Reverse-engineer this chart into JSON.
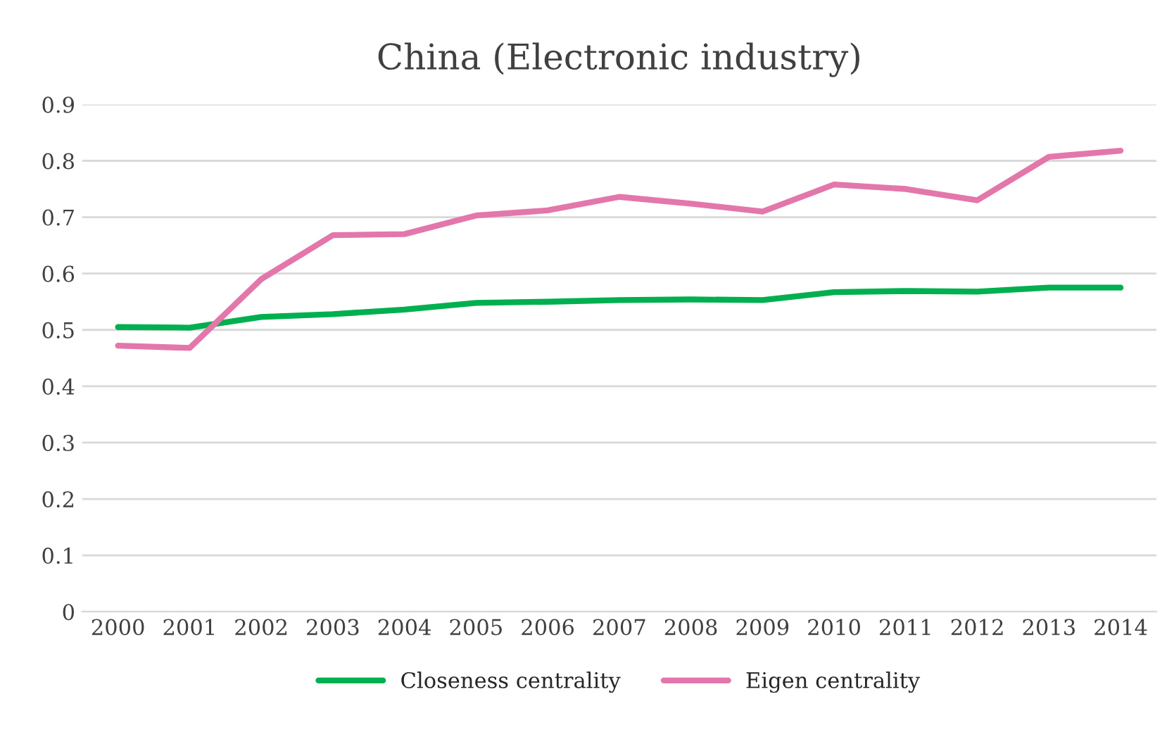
{
  "chart_data": {
    "type": "line",
    "title": "China (Electronic industry)",
    "categories": [
      "2000",
      "2001",
      "2002",
      "2003",
      "2004",
      "2005",
      "2006",
      "2007",
      "2008",
      "2009",
      "2010",
      "2011",
      "2012",
      "2013",
      "2014"
    ],
    "series": [
      {
        "name": "Closeness centrality",
        "color": "#00b050",
        "values": [
          0.505,
          0.504,
          0.523,
          0.528,
          0.536,
          0.548,
          0.55,
          0.553,
          0.554,
          0.553,
          0.567,
          0.569,
          0.568,
          0.575,
          0.575
        ]
      },
      {
        "name": "Eigen centrality",
        "color": "#e377ab",
        "values": [
          0.472,
          0.468,
          0.59,
          0.668,
          0.67,
          0.703,
          0.712,
          0.736,
          0.724,
          0.71,
          0.758,
          0.75,
          0.73,
          0.807,
          0.818
        ]
      }
    ],
    "ylim": [
      0,
      0.9
    ],
    "yticks": [
      0,
      0.1,
      0.2,
      0.3,
      0.4,
      0.5,
      0.6,
      0.7,
      0.8,
      0.9
    ],
    "grid": "y",
    "legend": "bottom",
    "marker": "none",
    "line_style": "solid"
  }
}
